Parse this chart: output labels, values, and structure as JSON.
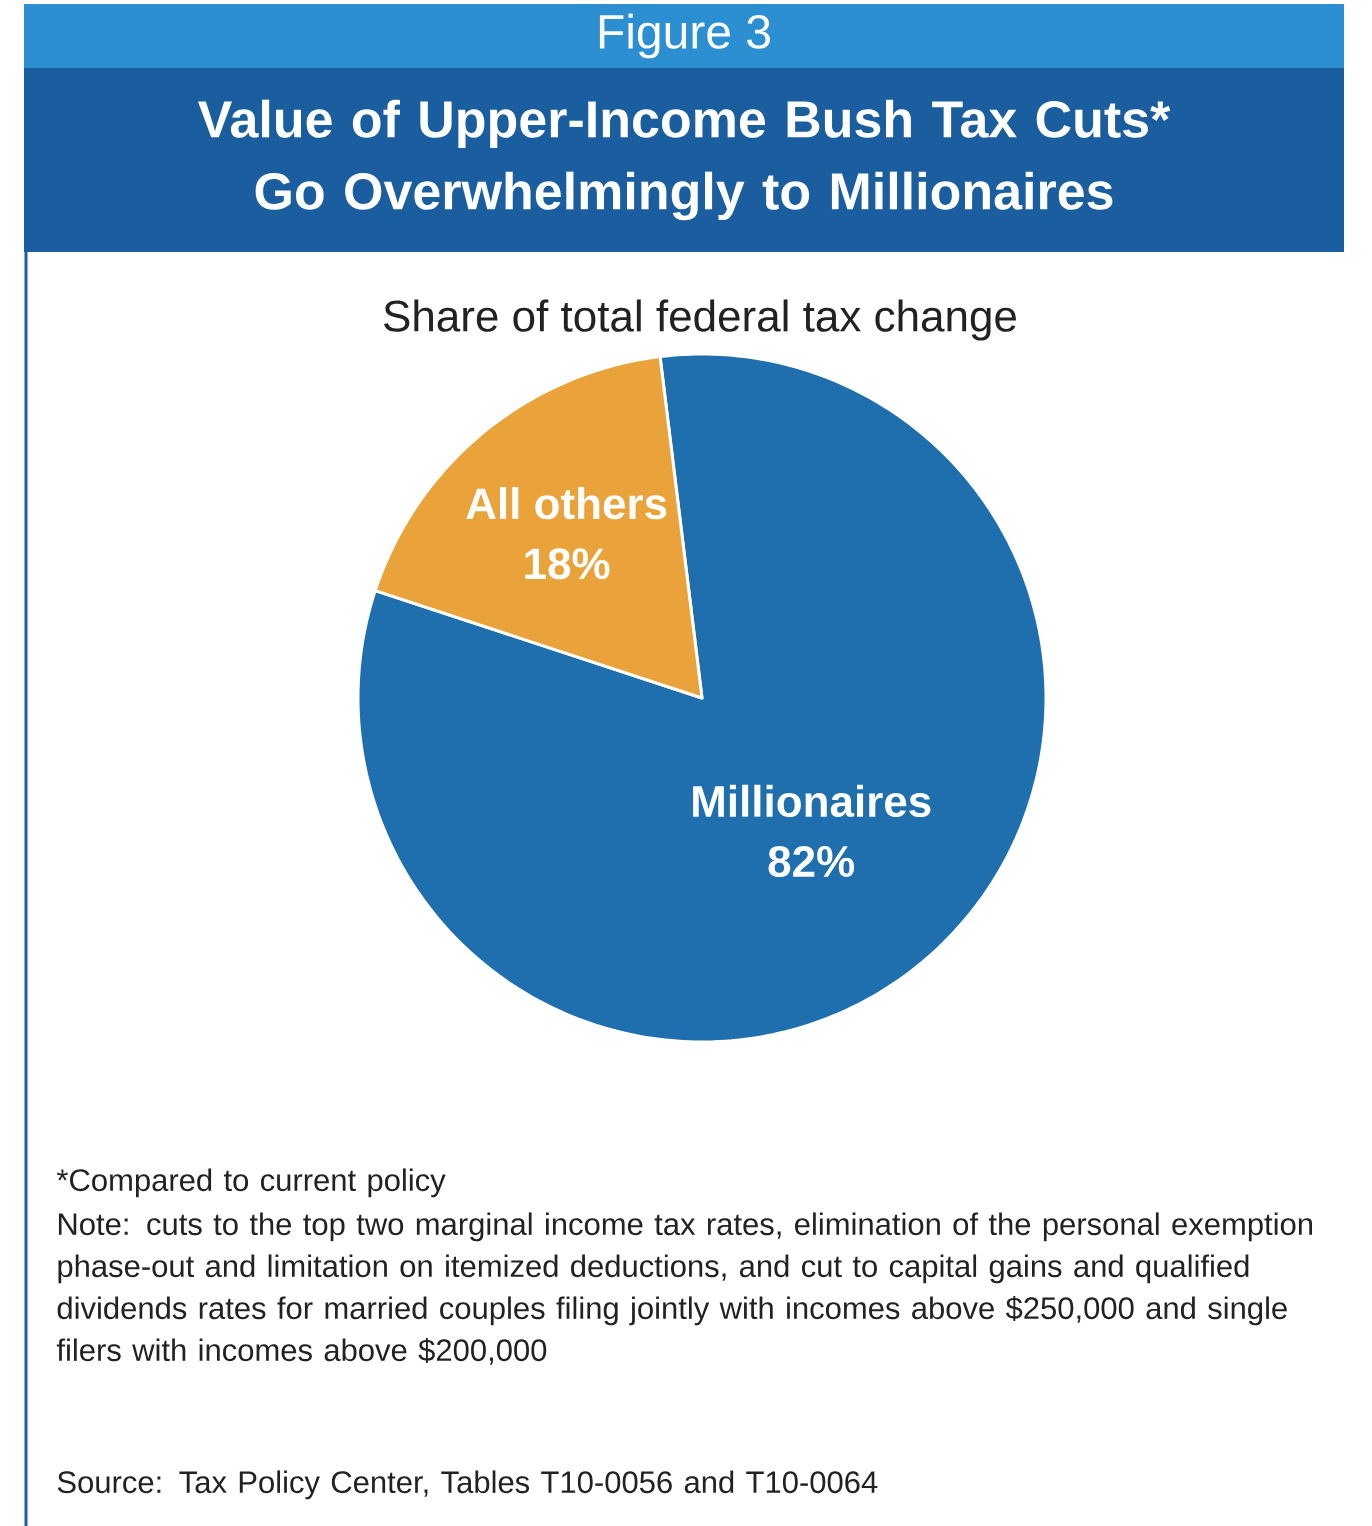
{
  "chart_data": {
    "type": "pie",
    "title": "Value of Upper-Income Bush Tax Cuts* Go Overwhelmingly to Millionaires",
    "subtitle": "Share of total federal tax change",
    "categories": [
      "Millionaires",
      "All others"
    ],
    "values": [
      82,
      18
    ],
    "value_labels": [
      "82%",
      "18%"
    ],
    "colors": [
      "#1f6fae",
      "#eaa33a"
    ],
    "annotations": [
      "Figure 3",
      "*Compared to current policy",
      "Note: cuts to the top two marginal income tax rates, elimination of the personal exemption phase-out and limitation on itemized deductions, and cut to capital gains and qualified dividends rates for married couples filing jointly with incomes above $250,000 and single filers with incomes above $200,000",
      "Source: Tax Policy Center, Tables T10-0056 and T10-0064"
    ]
  }
}
